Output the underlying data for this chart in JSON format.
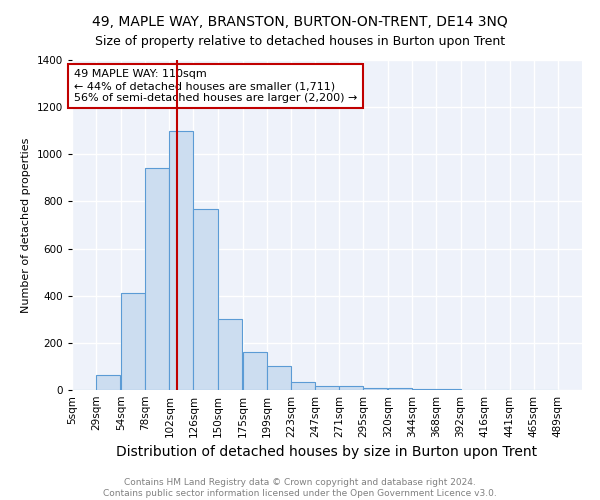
{
  "title": "49, MAPLE WAY, BRANSTON, BURTON-ON-TRENT, DE14 3NQ",
  "subtitle": "Size of property relative to detached houses in Burton upon Trent",
  "xlabel": "Distribution of detached houses by size in Burton upon Trent",
  "ylabel": "Number of detached properties",
  "bin_edges": [
    5,
    29,
    54,
    78,
    102,
    126,
    150,
    175,
    199,
    223,
    247,
    271,
    295,
    320,
    344,
    368,
    392,
    416,
    441,
    465,
    489
  ],
  "bin_widths": [
    24,
    25,
    24,
    24,
    24,
    24,
    25,
    24,
    24,
    24,
    24,
    24,
    25,
    24,
    24,
    24,
    24,
    25,
    24,
    24
  ],
  "bin_labels": [
    "5sqm",
    "29sqm",
    "54sqm",
    "78sqm",
    "102sqm",
    "126sqm",
    "150sqm",
    "175sqm",
    "199sqm",
    "223sqm",
    "247sqm",
    "271sqm",
    "295sqm",
    "320sqm",
    "344sqm",
    "368sqm",
    "392sqm",
    "416sqm",
    "441sqm",
    "465sqm",
    "489sqm"
  ],
  "bar_heights": [
    0,
    65,
    410,
    940,
    1100,
    770,
    300,
    160,
    100,
    35,
    15,
    15,
    10,
    10,
    5,
    5,
    0,
    0,
    0,
    0
  ],
  "bar_color": "#ccddf0",
  "bar_edge_color": "#5b9bd5",
  "vline_x": 110,
  "vline_color": "#c00000",
  "annotation_text": "49 MAPLE WAY: 110sqm\n← 44% of detached houses are smaller (1,711)\n56% of semi-detached houses are larger (2,200) →",
  "annotation_box_color": "white",
  "annotation_box_edge": "#c00000",
  "ylim": [
    0,
    1400
  ],
  "xlim_min": 5,
  "xlim_max": 513,
  "background_color": "#eef2fa",
  "grid_color": "white",
  "footer": "Contains HM Land Registry data © Crown copyright and database right 2024.\nContains public sector information licensed under the Open Government Licence v3.0.",
  "title_fontsize": 10,
  "subtitle_fontsize": 9,
  "xlabel_fontsize": 10,
  "ylabel_fontsize": 8,
  "tick_fontsize": 7.5,
  "footer_fontsize": 6.5
}
